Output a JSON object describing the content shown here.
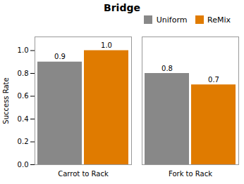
{
  "chart_data": {
    "type": "bar",
    "title": "Bridge",
    "categories": [
      "Carrot to Rack",
      "Fork to Rack"
    ],
    "series": [
      {
        "name": "Uniform",
        "color": "#888888",
        "values": [
          0.9,
          0.8
        ]
      },
      {
        "name": "ReMix",
        "color": "#E07B00",
        "values": [
          1.0,
          0.7
        ],
        "value_labels": [
          "1.0",
          "0.7"
        ]
      }
    ],
    "ylabel": "Success Rate",
    "ylim": [
      0.0,
      1.12
    ],
    "yticks": [
      {
        "value": 0,
        "label": "0.0"
      },
      0.2,
      0.4,
      0.6,
      0.8,
      {
        "value": 1,
        "label": "1.0"
      }
    ],
    "legend": "upper right",
    "data_labels": true
  }
}
